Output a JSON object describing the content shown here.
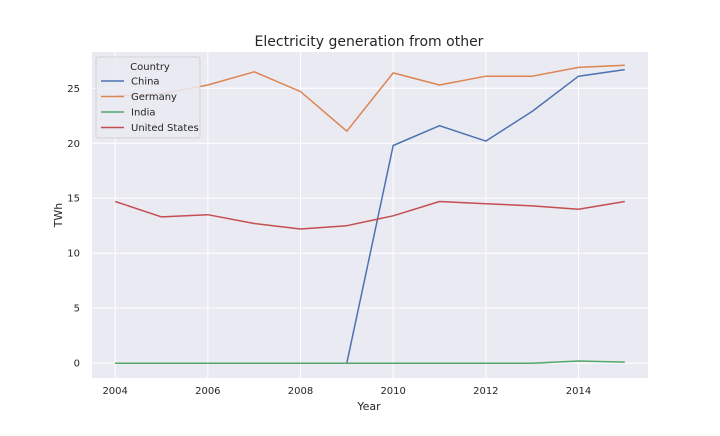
{
  "chart_data": {
    "type": "line",
    "title": "Electricity generation from other",
    "xlabel": "Year",
    "ylabel": "TWh",
    "x": [
      2004,
      2005,
      2006,
      2007,
      2008,
      2009,
      2010,
      2011,
      2012,
      2013,
      2014,
      2015
    ],
    "xlim": [
      2003.5,
      2015.5
    ],
    "ylim": [
      -1.35,
      28.3
    ],
    "x_ticks": [
      2004,
      2006,
      2008,
      2010,
      2012,
      2014
    ],
    "y_ticks": [
      0,
      5,
      10,
      15,
      20,
      25
    ],
    "grid": true,
    "legend": {
      "title": "Country",
      "placement": "top-left"
    },
    "series": [
      {
        "name": "China",
        "color": "#4c72b0",
        "values": [
          0,
          0,
          0,
          0,
          0,
          0,
          19.8,
          21.6,
          20.2,
          22.9,
          26.1,
          26.7
        ]
      },
      {
        "name": "Germany",
        "color": "#dd8452",
        "values": [
          24.3,
          24.5,
          25.3,
          26.5,
          24.7,
          21.1,
          26.4,
          25.3,
          26.1,
          26.1,
          26.9,
          27.1
        ]
      },
      {
        "name": "India",
        "color": "#55a868",
        "values": [
          0,
          0,
          0,
          0,
          0,
          0,
          0,
          0,
          0,
          0,
          0.2,
          0.1
        ]
      },
      {
        "name": "United States",
        "color": "#c44e52",
        "values": [
          14.7,
          13.3,
          13.5,
          12.7,
          12.2,
          12.5,
          13.4,
          14.7,
          14.5,
          14.3,
          14.0,
          14.7
        ]
      }
    ]
  }
}
